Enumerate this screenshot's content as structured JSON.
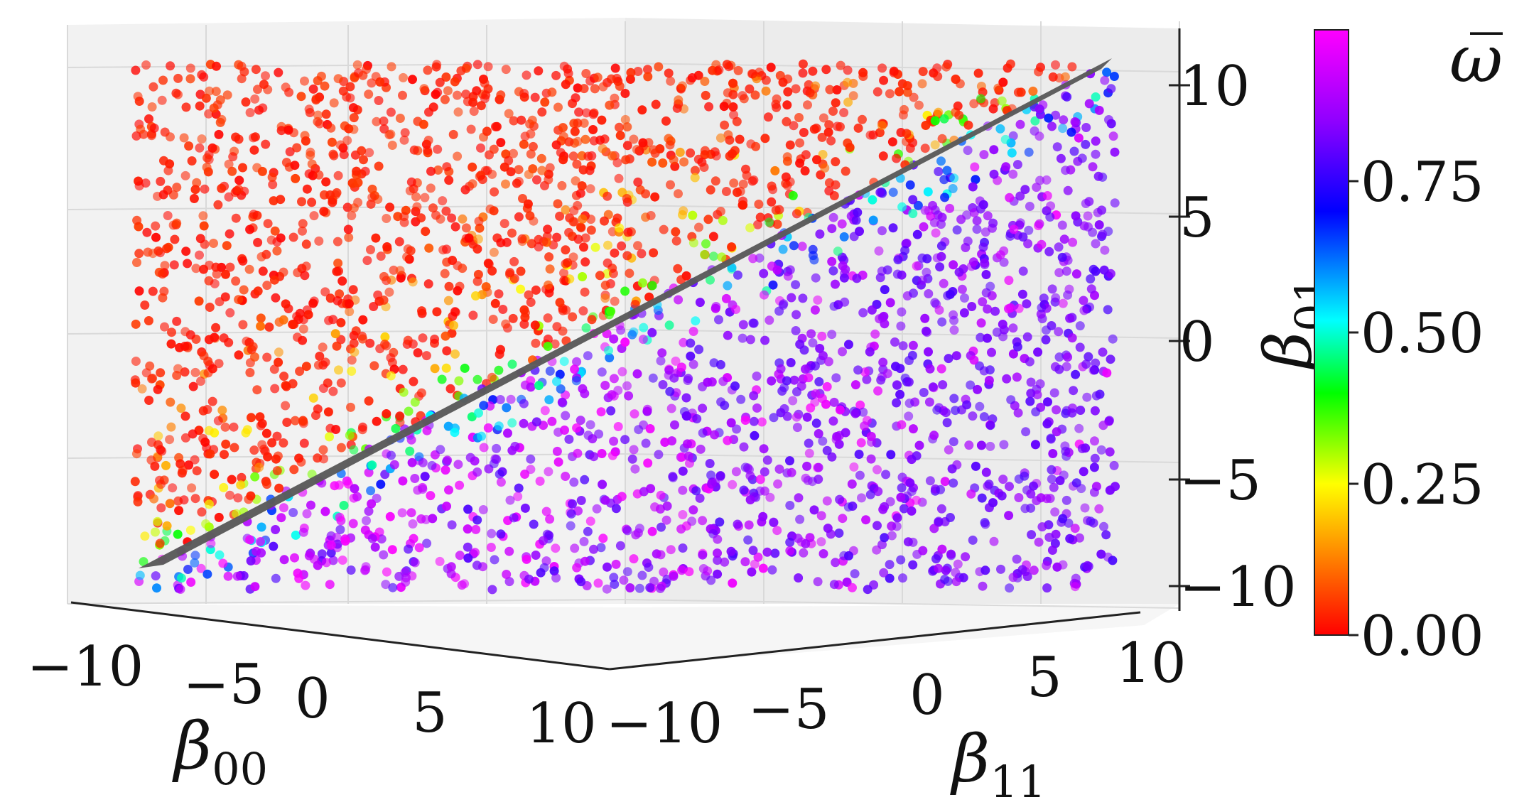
{
  "chart_data": {
    "type": "scatter",
    "projection": "3d",
    "axes": {
      "x": {
        "label_symbol": "β",
        "label_subscript": "00",
        "range": [
          -10,
          10
        ],
        "ticks": [
          -10,
          -5,
          0,
          5,
          10
        ],
        "tick_labels": [
          "−10",
          "−5",
          "0",
          "5",
          "10"
        ]
      },
      "y": {
        "label_symbol": "β",
        "label_subscript": "11",
        "range": [
          -10,
          10
        ],
        "ticks": [
          -10,
          -5,
          0,
          5,
          10
        ],
        "tick_labels": [
          "−10",
          "−5",
          "0",
          "5",
          "10"
        ]
      },
      "z": {
        "label_symbol": "β",
        "label_subscript": "01",
        "range": [
          -10,
          10
        ],
        "ticks": [
          -10,
          -5,
          0,
          5,
          10
        ],
        "tick_labels": [
          "−10",
          "−5",
          "0",
          "5",
          "10"
        ]
      }
    },
    "colorbar": {
      "label": "ω̅",
      "range": [
        0,
        1
      ],
      "ticks": [
        0.0,
        0.25,
        0.5,
        0.75
      ],
      "tick_labels": [
        "0.00",
        "0.25",
        "0.50",
        "0.75"
      ],
      "colormap": [
        "#ff0000",
        "#ff8c00",
        "#ffff00",
        "#00ff00",
        "#00ffff",
        "#0000ff",
        "#8000ff",
        "#ff00ff"
      ]
    },
    "series": [
      {
        "kind": "plane",
        "description": "dividing plane β01 = β00 + β11",
        "color": "#595959"
      },
      {
        "kind": "scatter-points",
        "count": 3000,
        "coloring": "by ω̅ value",
        "sample": [
          {
            "x": -8,
            "y": -6,
            "z": 8,
            "w": 0.01
          },
          {
            "x": -3,
            "y": 2,
            "z": 9,
            "w": 0.05
          },
          {
            "x": 0,
            "y": 0,
            "z": 0.5,
            "w": 0.3
          },
          {
            "x": 4,
            "y": 6,
            "z": -6,
            "w": 0.8
          },
          {
            "x": 7,
            "y": 2,
            "z": -5,
            "w": 0.95
          },
          {
            "x": -6,
            "y": 8,
            "z": -8,
            "w": 0.99
          }
        ]
      }
    ],
    "grid": true
  }
}
